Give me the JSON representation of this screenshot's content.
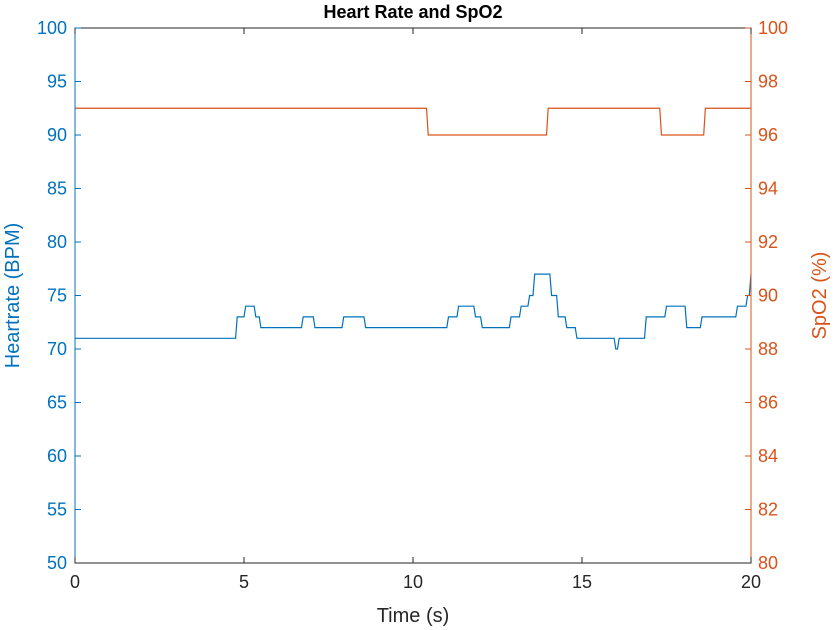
{
  "chart_data": {
    "type": "line",
    "title": "Heart Rate and SpO2",
    "xlabel": "Time (s)",
    "xlim": [
      0,
      20
    ],
    "xticks": [
      0,
      5,
      10,
      15,
      20
    ],
    "grid": false,
    "y_left": {
      "label": "Heartrate (BPM)",
      "lim": [
        50,
        100
      ],
      "ticks": [
        50,
        55,
        60,
        65,
        70,
        75,
        80,
        85,
        90,
        95,
        100
      ],
      "color": "#0072BD"
    },
    "y_right": {
      "label": "SpO2 (%)",
      "lim": [
        80,
        100
      ],
      "ticks": [
        80,
        82,
        84,
        86,
        88,
        90,
        92,
        94,
        96,
        98,
        100
      ],
      "color": "#D95319"
    },
    "series": [
      {
        "axis": "left",
        "color": "#0072BD",
        "points": [
          [
            0,
            71
          ],
          [
            4.75,
            71
          ],
          [
            4.8,
            73
          ],
          [
            5.0,
            73
          ],
          [
            5.05,
            74
          ],
          [
            5.3,
            74
          ],
          [
            5.35,
            73
          ],
          [
            5.45,
            73
          ],
          [
            5.5,
            72
          ],
          [
            6.7,
            72
          ],
          [
            6.75,
            73
          ],
          [
            7.05,
            73
          ],
          [
            7.1,
            72
          ],
          [
            7.9,
            72
          ],
          [
            7.95,
            73
          ],
          [
            8.55,
            73
          ],
          [
            8.6,
            72
          ],
          [
            11.0,
            72
          ],
          [
            11.05,
            73
          ],
          [
            11.3,
            73
          ],
          [
            11.35,
            74
          ],
          [
            11.8,
            74
          ],
          [
            11.85,
            73
          ],
          [
            12.0,
            73
          ],
          [
            12.05,
            72
          ],
          [
            12.85,
            72
          ],
          [
            12.9,
            73
          ],
          [
            13.15,
            73
          ],
          [
            13.2,
            74
          ],
          [
            13.4,
            74
          ],
          [
            13.45,
            75
          ],
          [
            13.55,
            75
          ],
          [
            13.6,
            77
          ],
          [
            14.05,
            77
          ],
          [
            14.1,
            75
          ],
          [
            14.25,
            75
          ],
          [
            14.3,
            73
          ],
          [
            14.5,
            73
          ],
          [
            14.55,
            72
          ],
          [
            14.8,
            72
          ],
          [
            14.85,
            71
          ],
          [
            15.95,
            71
          ],
          [
            16.0,
            70
          ],
          [
            16.05,
            70
          ],
          [
            16.1,
            71
          ],
          [
            16.85,
            71
          ],
          [
            16.9,
            73
          ],
          [
            17.45,
            73
          ],
          [
            17.5,
            74
          ],
          [
            18.05,
            74
          ],
          [
            18.1,
            72
          ],
          [
            18.5,
            72
          ],
          [
            18.55,
            73
          ],
          [
            19.55,
            73
          ],
          [
            19.6,
            74
          ],
          [
            19.85,
            74
          ],
          [
            19.9,
            75
          ],
          [
            19.95,
            75
          ],
          [
            20.0,
            77
          ]
        ]
      },
      {
        "axis": "right",
        "color": "#D95319",
        "points": [
          [
            0,
            97
          ],
          [
            10.4,
            97
          ],
          [
            10.45,
            96
          ],
          [
            13.95,
            96
          ],
          [
            14.0,
            97
          ],
          [
            17.3,
            97
          ],
          [
            17.35,
            96
          ],
          [
            18.6,
            96
          ],
          [
            18.65,
            97
          ],
          [
            20.0,
            97
          ]
        ]
      }
    ]
  }
}
